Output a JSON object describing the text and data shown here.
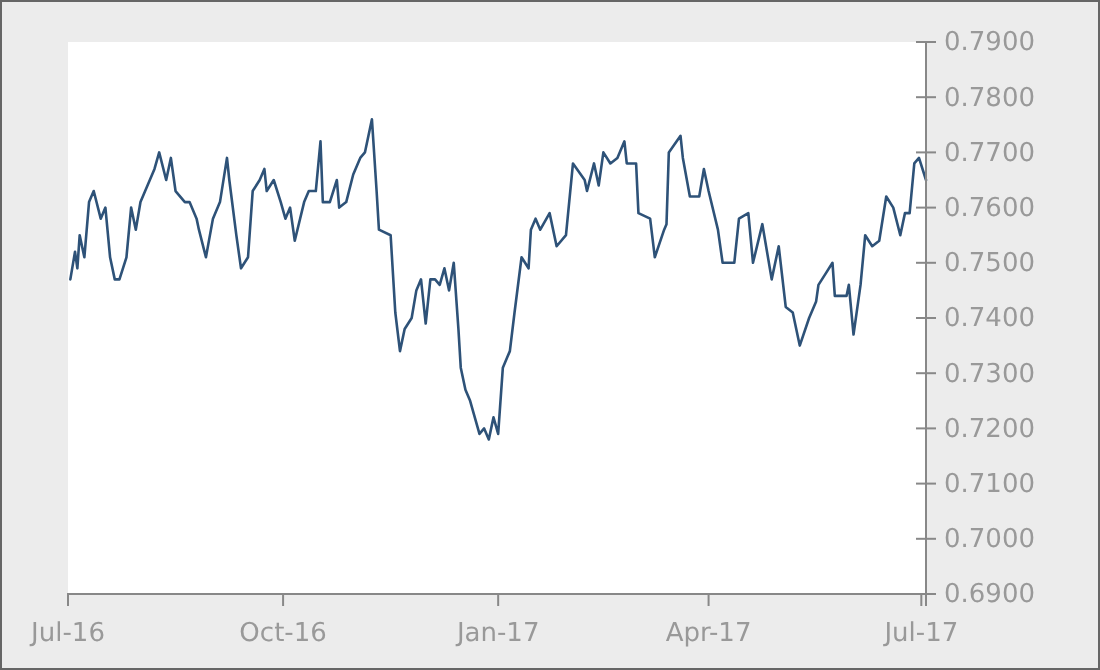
{
  "chart_data": {
    "type": "line",
    "xlim": [
      "2016-07-01",
      "2017-07-03"
    ],
    "ylim": [
      0.69,
      0.79
    ],
    "xticks": [
      {
        "value": "2016-07-01",
        "label": "Jul-16"
      },
      {
        "value": "2016-10-01",
        "label": "Oct-16"
      },
      {
        "value": "2017-01-01",
        "label": "Jan-17"
      },
      {
        "value": "2017-04-01",
        "label": "Apr-17"
      },
      {
        "value": "2017-07-01",
        "label": "Jul-17"
      }
    ],
    "yticks": [
      {
        "value": 0.69,
        "label": "0.6900"
      },
      {
        "value": 0.7,
        "label": "0.7000"
      },
      {
        "value": 0.71,
        "label": "0.7100"
      },
      {
        "value": 0.72,
        "label": "0.7200"
      },
      {
        "value": 0.73,
        "label": "0.7300"
      },
      {
        "value": 0.74,
        "label": "0.7400"
      },
      {
        "value": 0.75,
        "label": "0.7500"
      },
      {
        "value": 0.76,
        "label": "0.7600"
      },
      {
        "value": 0.77,
        "label": "0.7700"
      },
      {
        "value": 0.78,
        "label": "0.7800"
      },
      {
        "value": 0.79,
        "label": "0.7900"
      }
    ],
    "grid": false,
    "x": [
      "2016-07-02",
      "2016-07-04",
      "2016-07-05",
      "2016-07-06",
      "2016-07-08",
      "2016-07-10",
      "2016-07-12",
      "2016-07-15",
      "2016-07-17",
      "2016-07-19",
      "2016-07-21",
      "2016-07-23",
      "2016-07-26",
      "2016-07-28",
      "2016-07-30",
      "2016-08-01",
      "2016-08-03",
      "2016-08-07",
      "2016-08-09",
      "2016-08-12",
      "2016-08-14",
      "2016-08-16",
      "2016-08-20",
      "2016-08-22",
      "2016-08-25",
      "2016-08-26",
      "2016-08-29",
      "2016-09-01",
      "2016-09-04",
      "2016-09-07",
      "2016-09-08",
      "2016-09-11",
      "2016-09-13",
      "2016-09-16",
      "2016-09-18",
      "2016-09-21",
      "2016-09-23",
      "2016-09-24",
      "2016-09-27",
      "2016-09-30",
      "2016-10-02",
      "2016-10-04",
      "2016-10-06",
      "2016-10-10",
      "2016-10-12",
      "2016-10-15",
      "2016-10-17",
      "2016-10-18",
      "2016-10-21",
      "2016-10-24",
      "2016-10-25",
      "2016-10-28",
      "2016-10-31",
      "2016-11-03",
      "2016-11-05",
      "2016-11-08",
      "2016-11-10",
      "2016-11-11",
      "2016-11-16",
      "2016-11-18",
      "2016-11-20",
      "2016-11-22",
      "2016-11-25",
      "2016-11-27",
      "2016-11-29",
      "2016-12-01",
      "2016-12-03",
      "2016-12-05",
      "2016-12-07",
      "2016-12-09",
      "2016-12-11",
      "2016-12-13",
      "2016-12-15",
      "2016-12-16",
      "2016-12-18",
      "2016-12-20",
      "2016-12-22",
      "2016-12-24",
      "2016-12-26",
      "2016-12-28",
      "2016-12-30",
      "2017-01-01",
      "2017-01-03",
      "2017-01-06",
      "2017-01-08",
      "2017-01-11",
      "2017-01-14",
      "2017-01-15",
      "2017-01-17",
      "2017-01-19",
      "2017-01-23",
      "2017-01-26",
      "2017-01-30",
      "2017-02-02",
      "2017-02-07",
      "2017-02-08",
      "2017-02-11",
      "2017-02-13",
      "2017-02-15",
      "2017-02-18",
      "2017-02-21",
      "2017-02-24",
      "2017-02-25",
      "2017-03-01",
      "2017-03-02",
      "2017-03-07",
      "2017-03-09",
      "2017-03-13",
      "2017-03-14",
      "2017-03-15",
      "2017-03-20",
      "2017-03-21",
      "2017-03-24",
      "2017-03-28",
      "2017-03-30",
      "2017-04-01",
      "2017-04-05",
      "2017-04-07",
      "2017-04-12",
      "2017-04-14",
      "2017-04-18",
      "2017-04-20",
      "2017-04-24",
      "2017-04-28",
      "2017-05-01",
      "2017-05-04",
      "2017-05-07",
      "2017-05-10",
      "2017-05-14",
      "2017-05-17",
      "2017-05-18",
      "2017-05-21",
      "2017-05-24",
      "2017-05-25",
      "2017-05-30",
      "2017-05-31",
      "2017-06-02",
      "2017-06-05",
      "2017-06-07",
      "2017-06-10",
      "2017-06-13",
      "2017-06-16",
      "2017-06-19",
      "2017-06-22",
      "2017-06-24",
      "2017-06-26",
      "2017-06-28",
      "2017-06-30",
      "2017-07-03"
    ],
    "series": [
      {
        "color": "#2e5278",
        "values": [
          0.747,
          0.752,
          0.749,
          0.755,
          0.751,
          0.761,
          0.763,
          0.758,
          0.76,
          0.751,
          0.747,
          0.747,
          0.751,
          0.76,
          0.756,
          0.761,
          0.763,
          0.767,
          0.77,
          0.765,
          0.769,
          0.763,
          0.761,
          0.761,
          0.758,
          0.756,
          0.751,
          0.758,
          0.761,
          0.769,
          0.765,
          0.755,
          0.749,
          0.751,
          0.763,
          0.765,
          0.767,
          0.763,
          0.765,
          0.761,
          0.758,
          0.76,
          0.754,
          0.761,
          0.763,
          0.763,
          0.772,
          0.761,
          0.761,
          0.765,
          0.76,
          0.761,
          0.766,
          0.769,
          0.77,
          0.776,
          0.763,
          0.756,
          0.755,
          0.741,
          0.734,
          0.738,
          0.74,
          0.745,
          0.747,
          0.739,
          0.747,
          0.747,
          0.746,
          0.749,
          0.745,
          0.75,
          0.738,
          0.731,
          0.727,
          0.725,
          0.722,
          0.719,
          0.72,
          0.718,
          0.722,
          0.719,
          0.731,
          0.734,
          0.741,
          0.751,
          0.749,
          0.756,
          0.758,
          0.756,
          0.759,
          0.753,
          0.755,
          0.768,
          0.765,
          0.763,
          0.768,
          0.764,
          0.77,
          0.768,
          0.769,
          0.772,
          0.768,
          0.768,
          0.759,
          0.758,
          0.751,
          0.756,
          0.757,
          0.77,
          0.773,
          0.769,
          0.762,
          0.762,
          0.767,
          0.763,
          0.756,
          0.75,
          0.75,
          0.758,
          0.759,
          0.75,
          0.757,
          0.747,
          0.753,
          0.742,
          0.741,
          0.735,
          0.74,
          0.743,
          0.746,
          0.748,
          0.75,
          0.744,
          0.744,
          0.746,
          0.737,
          0.746,
          0.755,
          0.753,
          0.754,
          0.762,
          0.76,
          0.755,
          0.759,
          0.759,
          0.768,
          0.769,
          0.765
        ]
      }
    ]
  }
}
